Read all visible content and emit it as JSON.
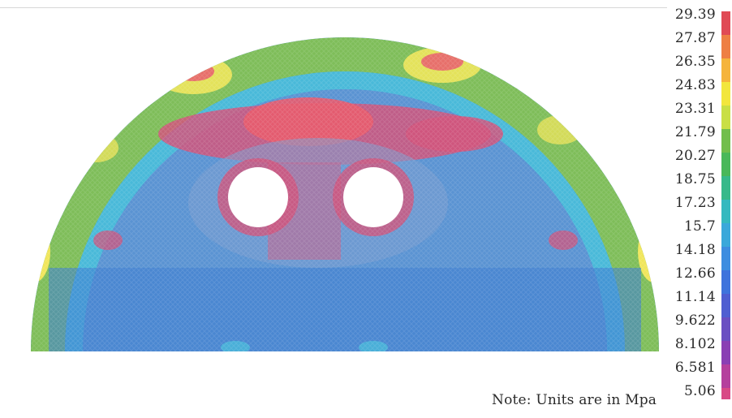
{
  "figure": {
    "subject": "stress contour on semicircular plate with two holes",
    "palette": {
      "background": "#ffffff",
      "blue_low": "#3f8ed8",
      "blue_mid": "#5a93d2",
      "cyan": "#49b9d9",
      "green": "#7ebd59",
      "yellow_green": "#c9d65a",
      "yellow": "#f0e65a",
      "orange": "#f2b061",
      "red": "#e85b6d",
      "magenta": "#d1537b",
      "purple": "#9b6fb0"
    }
  },
  "legend": {
    "values": [
      "29.39",
      "27.87",
      "26.35",
      "24.83",
      "23.31",
      "21.79",
      "20.27",
      "18.75",
      "17.23",
      "15.7",
      "14.18",
      "12.66",
      "11.14",
      "9.622",
      "8.102",
      "6.581",
      "5.06"
    ],
    "colors": [
      "#e04a55",
      "#ee7f44",
      "#f5b43c",
      "#f2e63d",
      "#c9df45",
      "#72be4c",
      "#49b85a",
      "#37b98a",
      "#35b9bf",
      "#3aa8da",
      "#3d8de0",
      "#3f73dc",
      "#4f5ed1",
      "#6a4fc2",
      "#8a3fb4",
      "#b5409d",
      "#d84a86"
    ]
  },
  "note": {
    "text": "Note: Units are in Mpa"
  }
}
